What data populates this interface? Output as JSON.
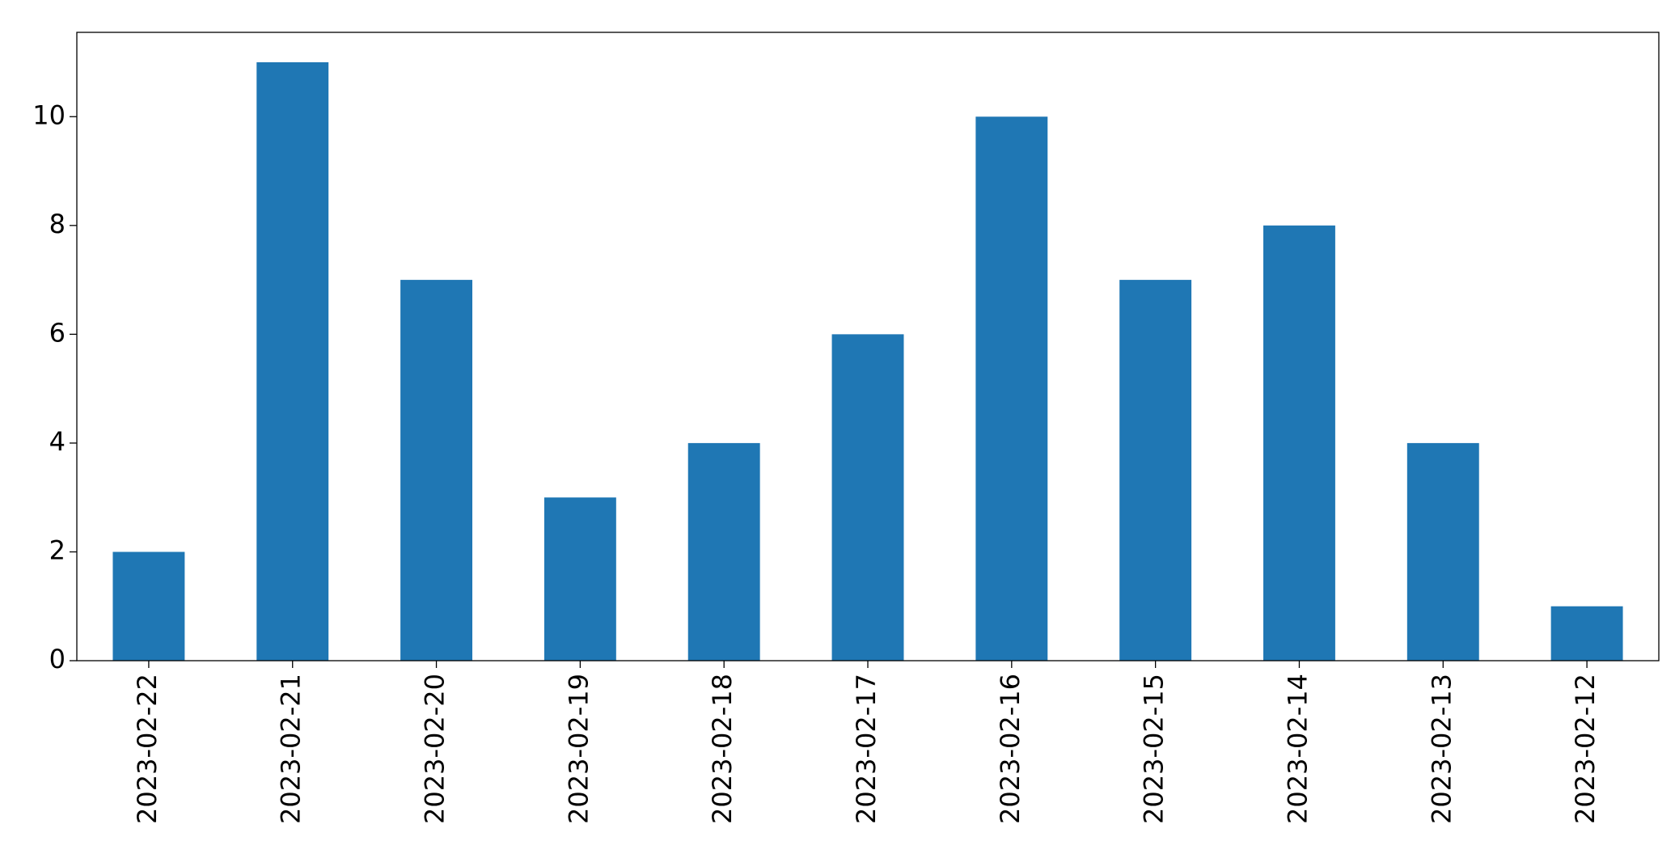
{
  "chart_data": {
    "type": "bar",
    "categories": [
      "2023-02-22",
      "2023-02-21",
      "2023-02-20",
      "2023-02-19",
      "2023-02-18",
      "2023-02-17",
      "2023-02-16",
      "2023-02-15",
      "2023-02-14",
      "2023-02-13",
      "2023-02-12"
    ],
    "values": [
      2,
      11,
      7,
      3,
      4,
      6,
      10,
      7,
      8,
      4,
      1
    ],
    "color": "#1f77b4",
    "ylim": [
      0,
      11.55
    ],
    "yticks": [
      0,
      2,
      4,
      6,
      8,
      10
    ],
    "grid": false
  }
}
